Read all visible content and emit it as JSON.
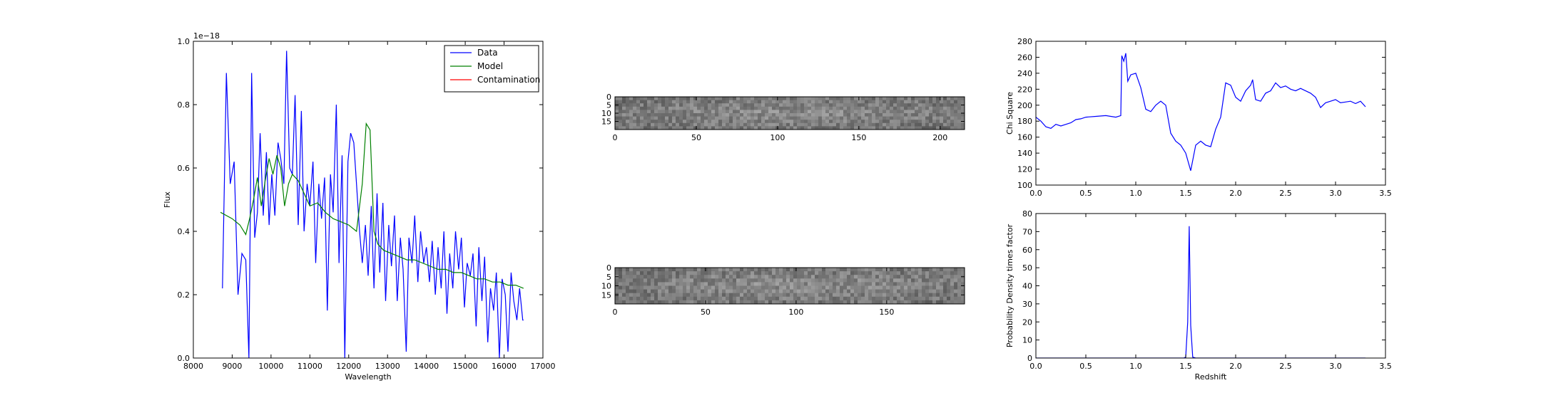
{
  "chart_data": [
    {
      "id": "spectrum",
      "type": "line",
      "xlabel": "Wavelength",
      "ylabel": "Flux",
      "offset_text": "1e−18",
      "xlim": [
        8000,
        17000
      ],
      "ylim": [
        0.0,
        1.0
      ],
      "xticks": [
        8000,
        9000,
        10000,
        11000,
        12000,
        13000,
        14000,
        15000,
        16000,
        17000
      ],
      "yticks": [
        0.0,
        0.2,
        0.4,
        0.6,
        0.8,
        1.0
      ],
      "xtick_labels": [
        "8000",
        "9000",
        "10000",
        "11000",
        "12000",
        "13000",
        "14000",
        "15000",
        "16000",
        "17000"
      ],
      "ytick_labels": [
        "0.0",
        "0.2",
        "0.4",
        "0.6",
        "0.8",
        "1.0"
      ],
      "legend": {
        "placement": "upper-right",
        "entries": [
          "Data",
          "Model",
          "Contamination"
        ]
      },
      "colors": {
        "Data": "#0000ff",
        "Model": "#008000",
        "Contamination": "#ff0000"
      },
      "series": [
        {
          "name": "Data",
          "x": [
            8750,
            8850,
            8950,
            9050,
            9150,
            9250,
            9350,
            9430,
            9500,
            9580,
            9650,
            9720,
            9800,
            9880,
            9950,
            10020,
            10100,
            10180,
            10250,
            10330,
            10400,
            10480,
            10550,
            10620,
            10700,
            10780,
            10850,
            10930,
            11000,
            11080,
            11150,
            11230,
            11300,
            11380,
            11450,
            11530,
            11600,
            11680,
            11750,
            11830,
            11900,
            11980,
            12050,
            12130,
            12200,
            12280,
            12350,
            12430,
            12500,
            12580,
            12650,
            12730,
            12800,
            12880,
            12950,
            13030,
            13100,
            13180,
            13250,
            13330,
            13400,
            13480,
            13550,
            13630,
            13700,
            13780,
            13850,
            13930,
            14000,
            14080,
            14150,
            14230,
            14300,
            14380,
            14450,
            14530,
            14600,
            14680,
            14750,
            14830,
            14900,
            14980,
            15050,
            15130,
            15200,
            15280,
            15350,
            15430,
            15500,
            15580,
            15650,
            15730,
            15800,
            15880,
            15950,
            16030,
            16100,
            16180,
            16250,
            16330,
            16400,
            16480,
            16500
          ],
          "y": [
            0.22,
            0.9,
            0.55,
            0.62,
            0.2,
            0.33,
            0.31,
            0.0,
            0.9,
            0.38,
            0.46,
            0.71,
            0.45,
            0.65,
            0.42,
            0.58,
            0.45,
            0.68,
            0.63,
            0.55,
            0.97,
            0.6,
            0.58,
            0.83,
            0.42,
            0.78,
            0.4,
            0.55,
            0.48,
            0.62,
            0.3,
            0.55,
            0.44,
            0.57,
            0.15,
            0.58,
            0.46,
            0.8,
            0.3,
            0.64,
            0.0,
            0.62,
            0.71,
            0.68,
            0.55,
            0.4,
            0.3,
            0.42,
            0.26,
            0.48,
            0.22,
            0.52,
            0.27,
            0.49,
            0.18,
            0.42,
            0.29,
            0.45,
            0.18,
            0.38,
            0.28,
            0.02,
            0.38,
            0.3,
            0.45,
            0.24,
            0.4,
            0.3,
            0.35,
            0.24,
            0.37,
            0.2,
            0.35,
            0.22,
            0.4,
            0.14,
            0.33,
            0.22,
            0.4,
            0.28,
            0.38,
            0.16,
            0.3,
            0.26,
            0.33,
            0.1,
            0.35,
            0.18,
            0.32,
            0.05,
            0.22,
            0.15,
            0.27,
            0.0,
            0.25,
            0.2,
            0.02,
            0.27,
            0.18,
            0.12,
            0.22,
            0.12,
            0.12
          ]
        },
        {
          "name": "Model",
          "x": [
            8700,
            9000,
            9200,
            9350,
            9450,
            9550,
            9650,
            9750,
            9850,
            9950,
            10050,
            10150,
            10250,
            10350,
            10450,
            10550,
            10700,
            10850,
            11000,
            11200,
            11400,
            11600,
            11800,
            12000,
            12200,
            12350,
            12450,
            12550,
            12650,
            12750,
            12900,
            13100,
            13300,
            13500,
            13700,
            13900,
            14100,
            14300,
            14500,
            14700,
            14900,
            15100,
            15300,
            15500,
            15700,
            15900,
            16100,
            16300,
            16500
          ],
          "y": [
            0.46,
            0.44,
            0.42,
            0.39,
            0.44,
            0.5,
            0.57,
            0.48,
            0.56,
            0.63,
            0.58,
            0.64,
            0.6,
            0.48,
            0.55,
            0.58,
            0.56,
            0.52,
            0.48,
            0.49,
            0.46,
            0.44,
            0.43,
            0.42,
            0.4,
            0.55,
            0.74,
            0.72,
            0.4,
            0.36,
            0.34,
            0.33,
            0.32,
            0.31,
            0.31,
            0.3,
            0.29,
            0.28,
            0.28,
            0.27,
            0.27,
            0.26,
            0.25,
            0.25,
            0.24,
            0.24,
            0.23,
            0.23,
            0.22
          ]
        },
        {
          "name": "Contamination",
          "x": [],
          "y": []
        }
      ]
    },
    {
      "id": "image-top",
      "type": "heatmap",
      "xlim": [
        0,
        215
      ],
      "ylim": [
        0,
        20
      ],
      "xticks": [
        0,
        50,
        100,
        150,
        200
      ],
      "yticks": [
        0,
        5,
        10,
        15
      ],
      "xtick_labels": [
        "0",
        "50",
        "100",
        "150",
        "200"
      ],
      "ytick_labels": [
        "0",
        "5",
        "10",
        "15"
      ],
      "cmap": "gray"
    },
    {
      "id": "image-bottom",
      "type": "heatmap",
      "xlim": [
        0,
        193
      ],
      "ylim": [
        0,
        20
      ],
      "xticks": [
        0,
        50,
        100,
        150
      ],
      "yticks": [
        0,
        5,
        10,
        15
      ],
      "xtick_labels": [
        "0",
        "50",
        "100",
        "150"
      ],
      "ytick_labels": [
        "0",
        "5",
        "10",
        "15"
      ],
      "cmap": "gray"
    },
    {
      "id": "chisq",
      "type": "line",
      "xlabel": "",
      "ylabel": "Chi Square",
      "xlim": [
        0.0,
        3.5
      ],
      "ylim": [
        100,
        280
      ],
      "xticks": [
        0.0,
        0.5,
        1.0,
        1.5,
        2.0,
        2.5,
        3.0,
        3.5
      ],
      "yticks": [
        100,
        120,
        140,
        160,
        180,
        200,
        220,
        240,
        260,
        280
      ],
      "xtick_labels": [
        "0.0",
        "0.5",
        "1.0",
        "1.5",
        "2.0",
        "2.5",
        "3.0",
        "3.5"
      ],
      "ytick_labels": [
        "100",
        "120",
        "140",
        "160",
        "180",
        "200",
        "220",
        "240",
        "260",
        "280"
      ],
      "colors": {
        "line": "#0000ff"
      },
      "series": [
        {
          "x": [
            0.0,
            0.05,
            0.1,
            0.15,
            0.2,
            0.25,
            0.3,
            0.35,
            0.4,
            0.45,
            0.5,
            0.6,
            0.7,
            0.8,
            0.85,
            0.86,
            0.88,
            0.9,
            0.92,
            0.95,
            1.0,
            1.05,
            1.1,
            1.15,
            1.2,
            1.25,
            1.3,
            1.35,
            1.4,
            1.45,
            1.5,
            1.55,
            1.6,
            1.65,
            1.7,
            1.75,
            1.8,
            1.85,
            1.9,
            1.95,
            2.0,
            2.05,
            2.1,
            2.15,
            2.17,
            2.2,
            2.25,
            2.3,
            2.35,
            2.4,
            2.45,
            2.5,
            2.55,
            2.6,
            2.65,
            2.7,
            2.75,
            2.8,
            2.85,
            2.9,
            2.95,
            3.0,
            3.05,
            3.1,
            3.15,
            3.2,
            3.25,
            3.3
          ],
          "y": [
            185,
            180,
            173,
            171,
            176,
            174,
            176,
            178,
            182,
            183,
            185,
            186,
            187,
            185,
            187,
            262,
            255,
            265,
            230,
            238,
            240,
            222,
            195,
            192,
            200,
            205,
            200,
            165,
            155,
            150,
            140,
            118,
            150,
            155,
            150,
            148,
            170,
            185,
            228,
            225,
            210,
            205,
            218,
            225,
            232,
            207,
            205,
            215,
            218,
            228,
            222,
            224,
            220,
            218,
            221,
            218,
            215,
            210,
            197,
            203,
            205,
            207,
            203,
            204,
            205,
            202,
            205,
            198
          ]
        }
      ]
    },
    {
      "id": "pdf",
      "type": "line",
      "xlabel": "Redshift",
      "ylabel": "Probability Density times factor",
      "xlim": [
        0.0,
        3.5
      ],
      "ylim": [
        0,
        80
      ],
      "xticks": [
        0.0,
        0.5,
        1.0,
        1.5,
        2.0,
        2.5,
        3.0,
        3.5
      ],
      "yticks": [
        0,
        10,
        20,
        30,
        40,
        50,
        60,
        70,
        80
      ],
      "xtick_labels": [
        "0.0",
        "0.5",
        "1.0",
        "1.5",
        "2.0",
        "2.5",
        "3.0",
        "3.5"
      ],
      "ytick_labels": [
        "0",
        "10",
        "20",
        "30",
        "40",
        "50",
        "60",
        "70",
        "80"
      ],
      "colors": {
        "line": "#0000ff"
      },
      "series": [
        {
          "x": [
            0.0,
            1.48,
            1.5,
            1.52,
            1.535,
            1.55,
            1.57,
            1.6,
            3.3
          ],
          "y": [
            0,
            0,
            0.5,
            20,
            73,
            18,
            0.5,
            0,
            0
          ]
        }
      ]
    }
  ]
}
